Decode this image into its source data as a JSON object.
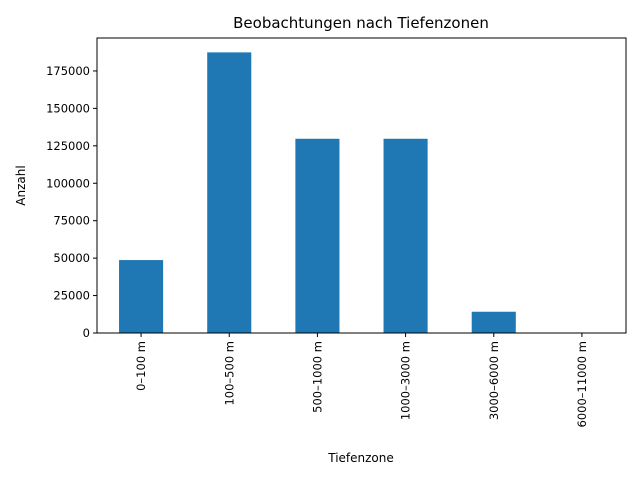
{
  "chart_data": {
    "type": "bar",
    "title": "Beobachtungen nach Tiefenzonen",
    "xlabel": "Tiefenzone",
    "ylabel": "Anzahl",
    "categories": [
      "0–100 m",
      "100–500 m",
      "500–1000 m",
      "1000–3000 m",
      "3000–6000 m",
      "6000–11000 m"
    ],
    "values": [
      48700,
      187400,
      129700,
      129700,
      14200,
      0
    ],
    "ylim": [
      0,
      197000
    ],
    "yticks": [
      0,
      25000,
      50000,
      75000,
      100000,
      125000,
      150000,
      175000
    ],
    "grid": false,
    "legend": "none",
    "bar_color": "#1f77b4"
  }
}
